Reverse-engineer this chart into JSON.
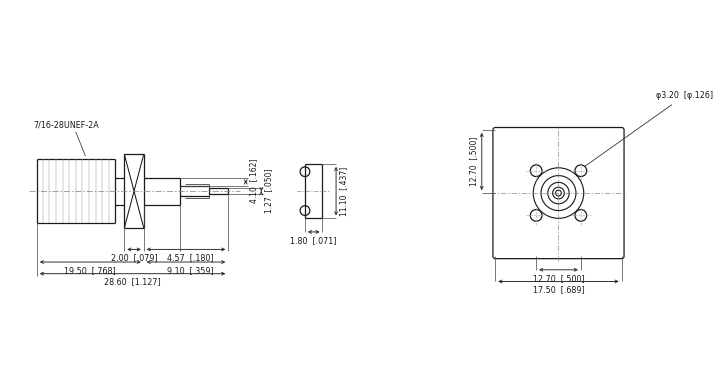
{
  "bg_color": "#ffffff",
  "line_color": "#1a1a1a",
  "dim_color": "#1a1a1a",
  "label_7_16": "7/16-28UNEF-2A",
  "dim_410": "4.10  [.162]",
  "dim_127": "1.27  [.050]",
  "dim_200": "2.00  [.079]",
  "dim_457": "4.57  [.180]",
  "dim_1950": "19.50  [.768]",
  "dim_910": "9.10  [.359]",
  "dim_2860": "28.60  [1.127]",
  "dim_1110": "11.10  [.437]",
  "dim_180": "1.80  [.071]",
  "dim_1270_vert": "12.70  [.500]",
  "dim_1270_horiz": "12.70  [.500]",
  "dim_1750": "17.50  [.689]",
  "dim_320": "φ3.20  [φ.126]"
}
